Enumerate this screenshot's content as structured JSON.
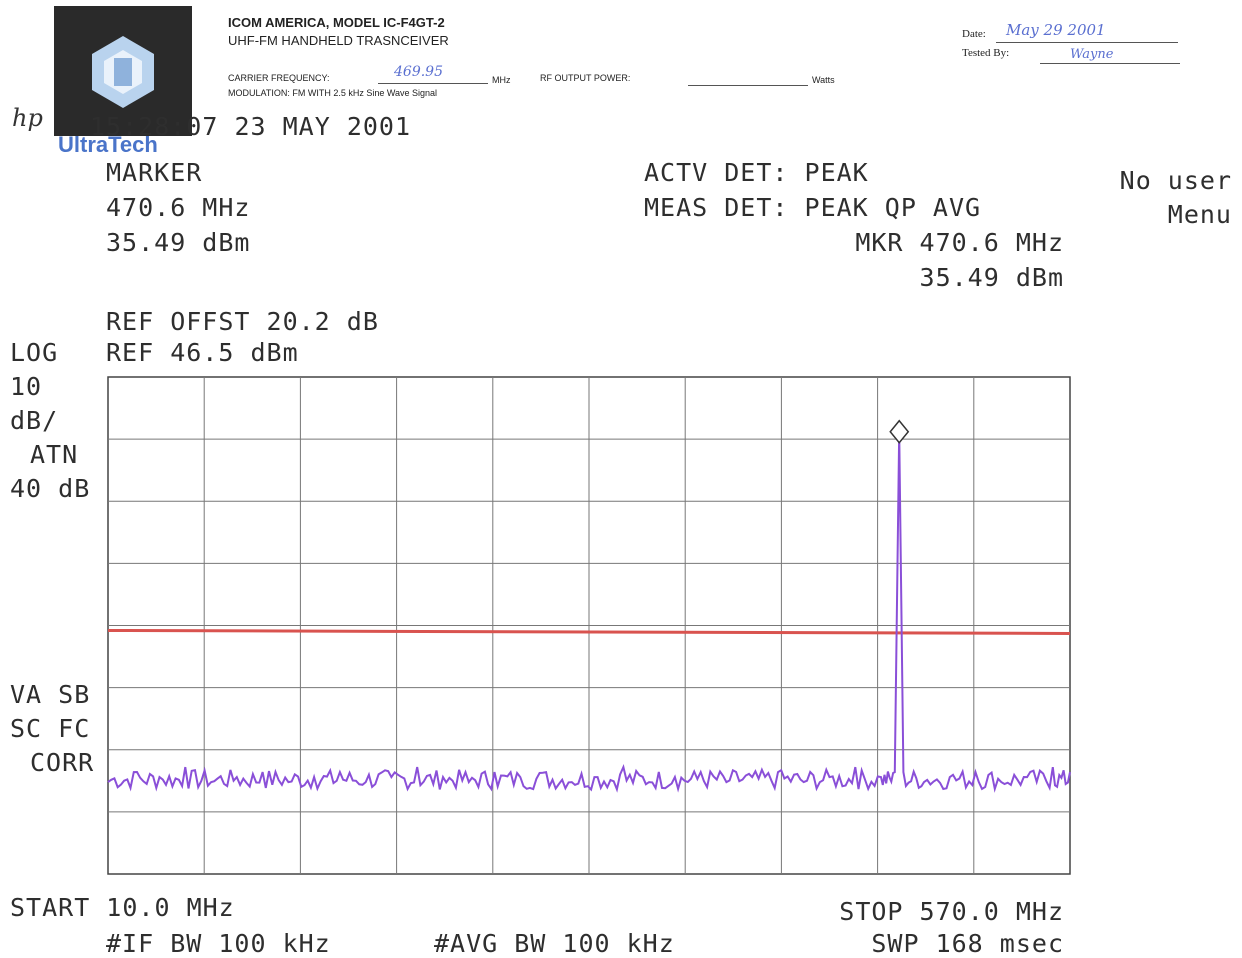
{
  "header": {
    "title": "ICOM AMERICA, MODEL IC-F4GT-2",
    "subtitle": "UHF-FM HANDHELD TRASNCEIVER",
    "carrier_label": "CARRIER FREQUENCY:",
    "carrier_value": "469.95",
    "carrier_unit": "MHz",
    "rf_power_label": "RF OUTPUT POWER:",
    "rf_power_unit": "Watts",
    "modulation": "MODULATION: FM WITH 2.5 kHz Sine Wave Signal",
    "date_label": "Date:",
    "date_value": "May 29 2001",
    "tested_by_label": "Tested By:",
    "tested_by_value": "Wayne"
  },
  "logo": {
    "brand": "UltraTech",
    "mark": "hp"
  },
  "analyzer": {
    "timestamp": "15:28:07  23 MAY 2001",
    "marker_label": "MARKER",
    "marker_freq": "470.6 MHz",
    "marker_level": "35.49 dBm",
    "actv_det": "ACTV DET: PEAK",
    "meas_det": "MEAS DET: PEAK QP AVG",
    "mkr_freq": "MKR 470.6 MHz",
    "mkr_level": "35.49 dBm",
    "menu_line1": "No user",
    "menu_line2": "Menu",
    "ref_offset": "REF OFFST 20.2 dB",
    "ref_level": "REF 46.5 dBm",
    "left_log": "LOG",
    "left_div1": "10",
    "left_div2": "dB/",
    "left_atn": "ATN",
    "left_atn_val": "40 dB",
    "left_va_sb": "VA SB",
    "left_sc_fc": "SC FC",
    "left_corr": "CORR",
    "start": "START 10.0 MHz",
    "stop": "STOP 570.0 MHz",
    "if_bw": "#IF BW 100 kHz",
    "avg_bw": "#AVG BW 100 kHz",
    "sweep": "SWP 168 msec"
  },
  "chart_data": {
    "type": "line",
    "xlim": [
      10.0,
      570.0
    ],
    "ylim": [
      -53.5,
      46.5
    ],
    "x_unit": "MHz",
    "y_unit": "dBm",
    "grid": true,
    "limit_line_dbm": -4.5,
    "limit_color": "#d9534f",
    "trace_color": "#8a4fd8",
    "noise_floor_dbm": -34.5,
    "marker": {
      "x": 470.6,
      "y": 35.49
    },
    "series": [
      {
        "x": [
          10,
          25,
          40,
          55,
          70,
          85,
          100,
          115,
          130,
          145,
          160,
          175,
          190,
          205,
          220,
          235,
          250,
          265,
          280,
          295,
          310,
          325,
          340,
          355,
          370,
          385,
          400,
          415,
          430,
          445,
          460,
          468,
          470.6,
          473,
          485,
          500,
          515,
          530,
          545,
          560,
          570
        ],
        "y": [
          -35,
          -33,
          -34,
          -32,
          -35,
          -34,
          -33,
          -35,
          -34,
          -33,
          -35,
          -34,
          -32,
          -34,
          -35,
          -33,
          -34,
          -33,
          -35,
          -34,
          -32,
          -35,
          -34,
          -33,
          -35,
          -34,
          -33,
          -35,
          -34,
          -32,
          -34,
          -33,
          35.49,
          -33,
          -35,
          -34,
          -33,
          -35,
          -34,
          -32,
          -33
        ]
      }
    ]
  }
}
